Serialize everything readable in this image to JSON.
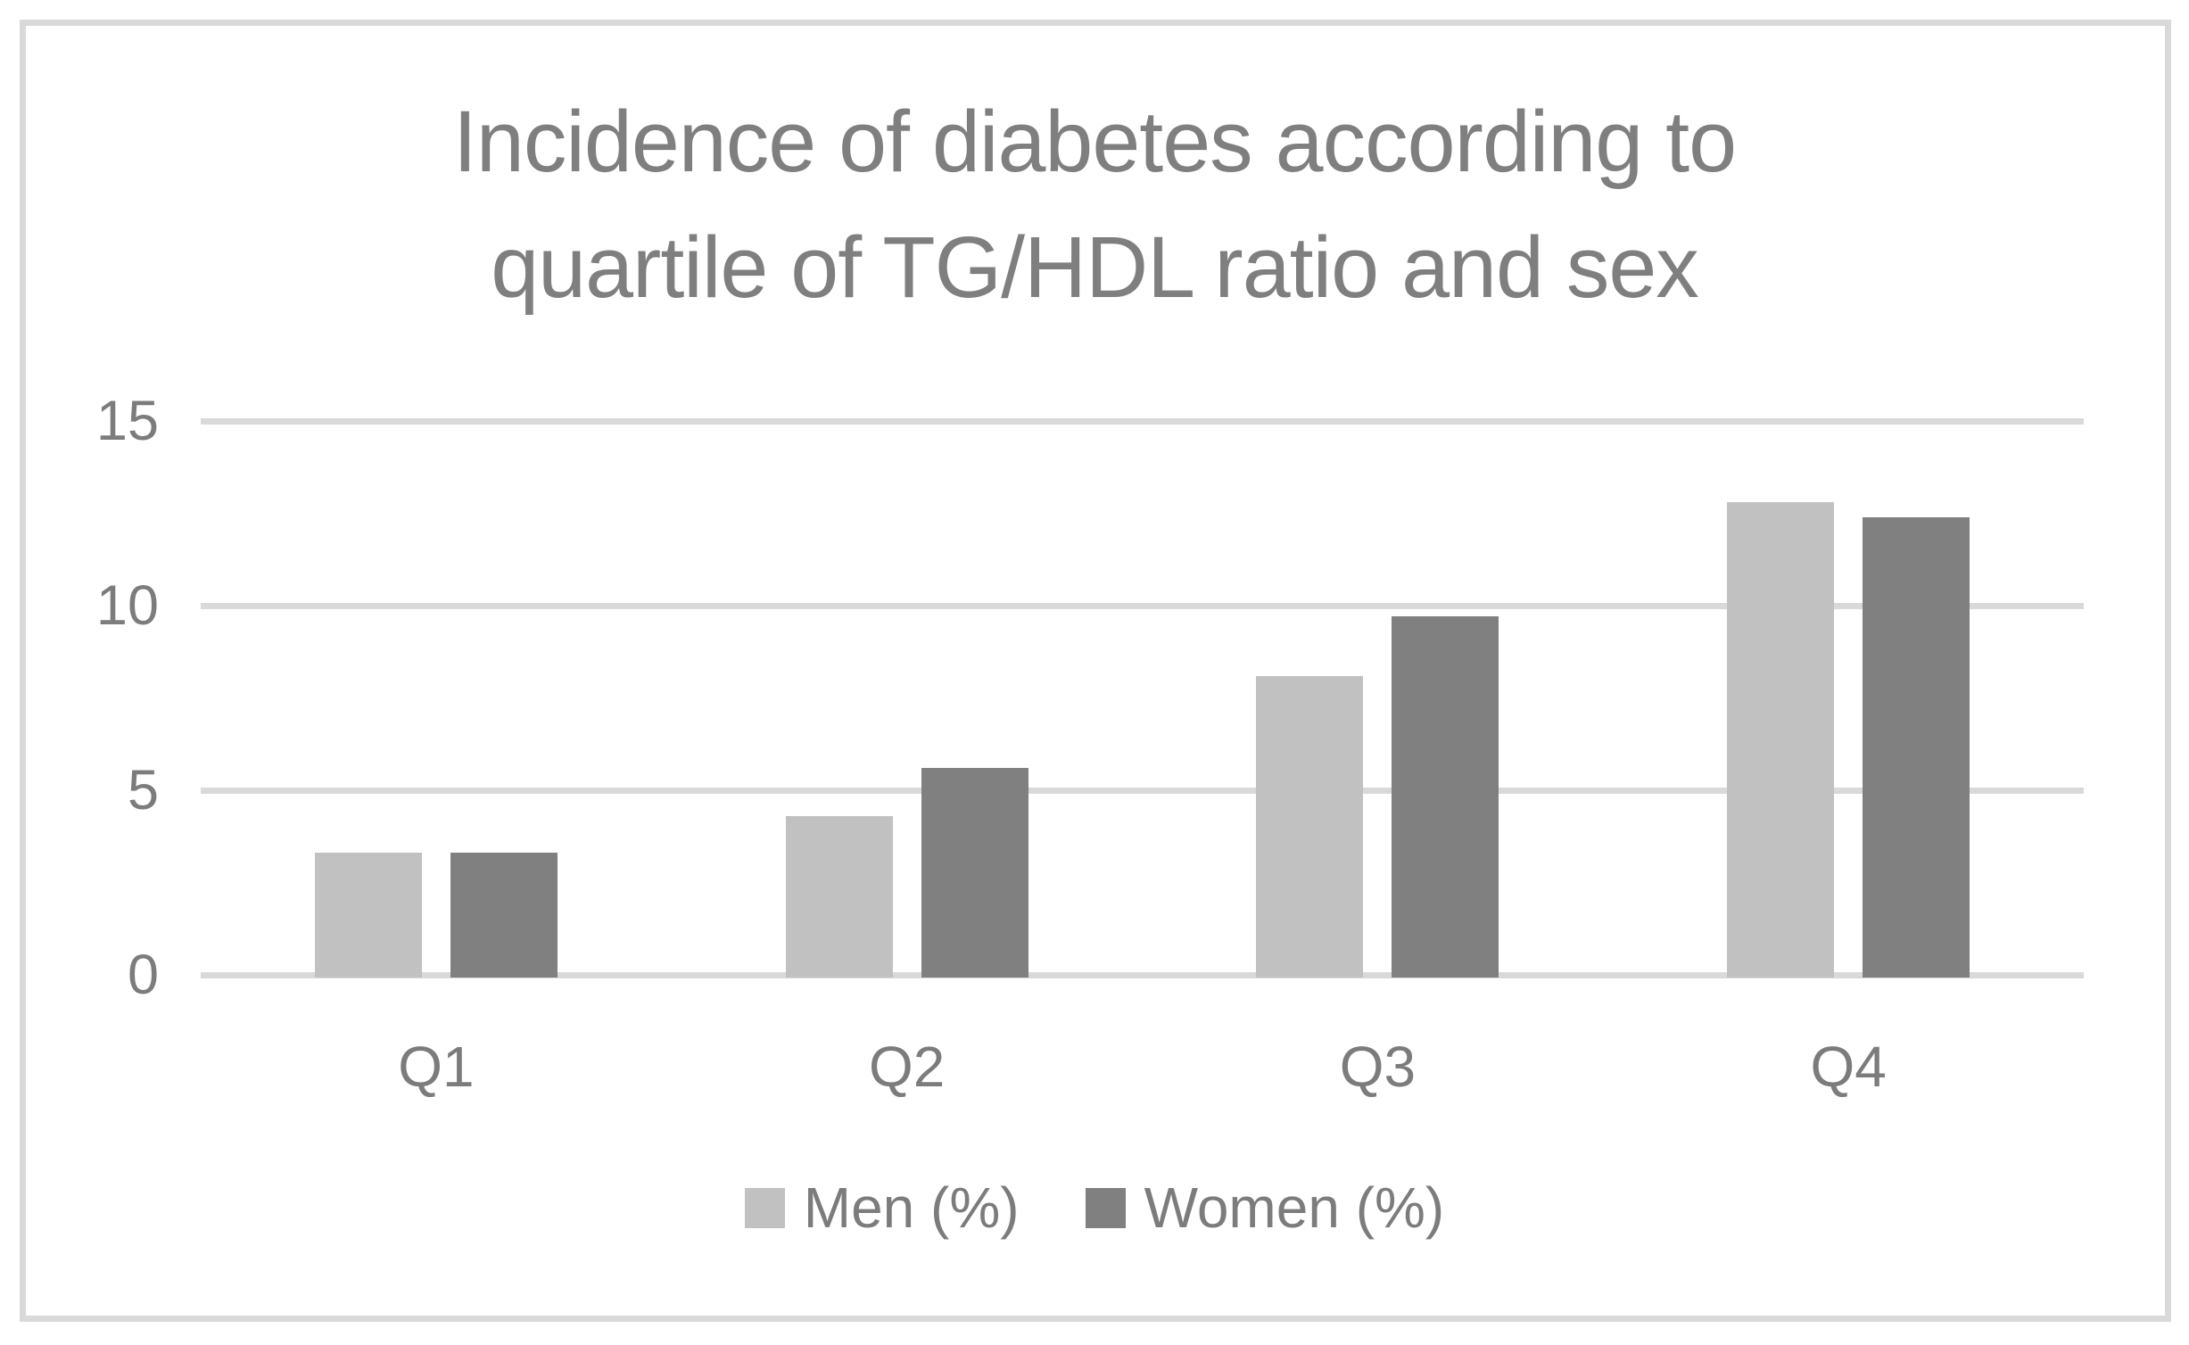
{
  "chart": {
    "title_line1": "Incidence of diabetes according to",
    "title_line2": "quartile of TG/HDL ratio and sex"
  },
  "chart_data": {
    "type": "bar",
    "title": "Incidence of diabetes according to quartile of TG/HDL ratio and sex",
    "categories": [
      "Q1",
      "Q2",
      "Q3",
      "Q4"
    ],
    "series": [
      {
        "name": "Men (%)",
        "color": "#c1c1c1",
        "values": [
          3.3,
          4.3,
          8.1,
          12.8
        ]
      },
      {
        "name": "Women (%)",
        "color": "#808080",
        "values": [
          3.3,
          5.6,
          9.7,
          12.4
        ]
      }
    ],
    "xlabel": "",
    "ylabel": "",
    "ylim": [
      0,
      15
    ],
    "yticks": [
      0,
      5,
      10,
      15
    ],
    "grid": true,
    "legend_position": "bottom"
  },
  "colors": {
    "gridline": "#d9d9d9",
    "frame_border": "#d9d9d9",
    "title_text": "#7f7f7f",
    "axis_text": "#7c7c7c",
    "background": "#ffffff"
  }
}
